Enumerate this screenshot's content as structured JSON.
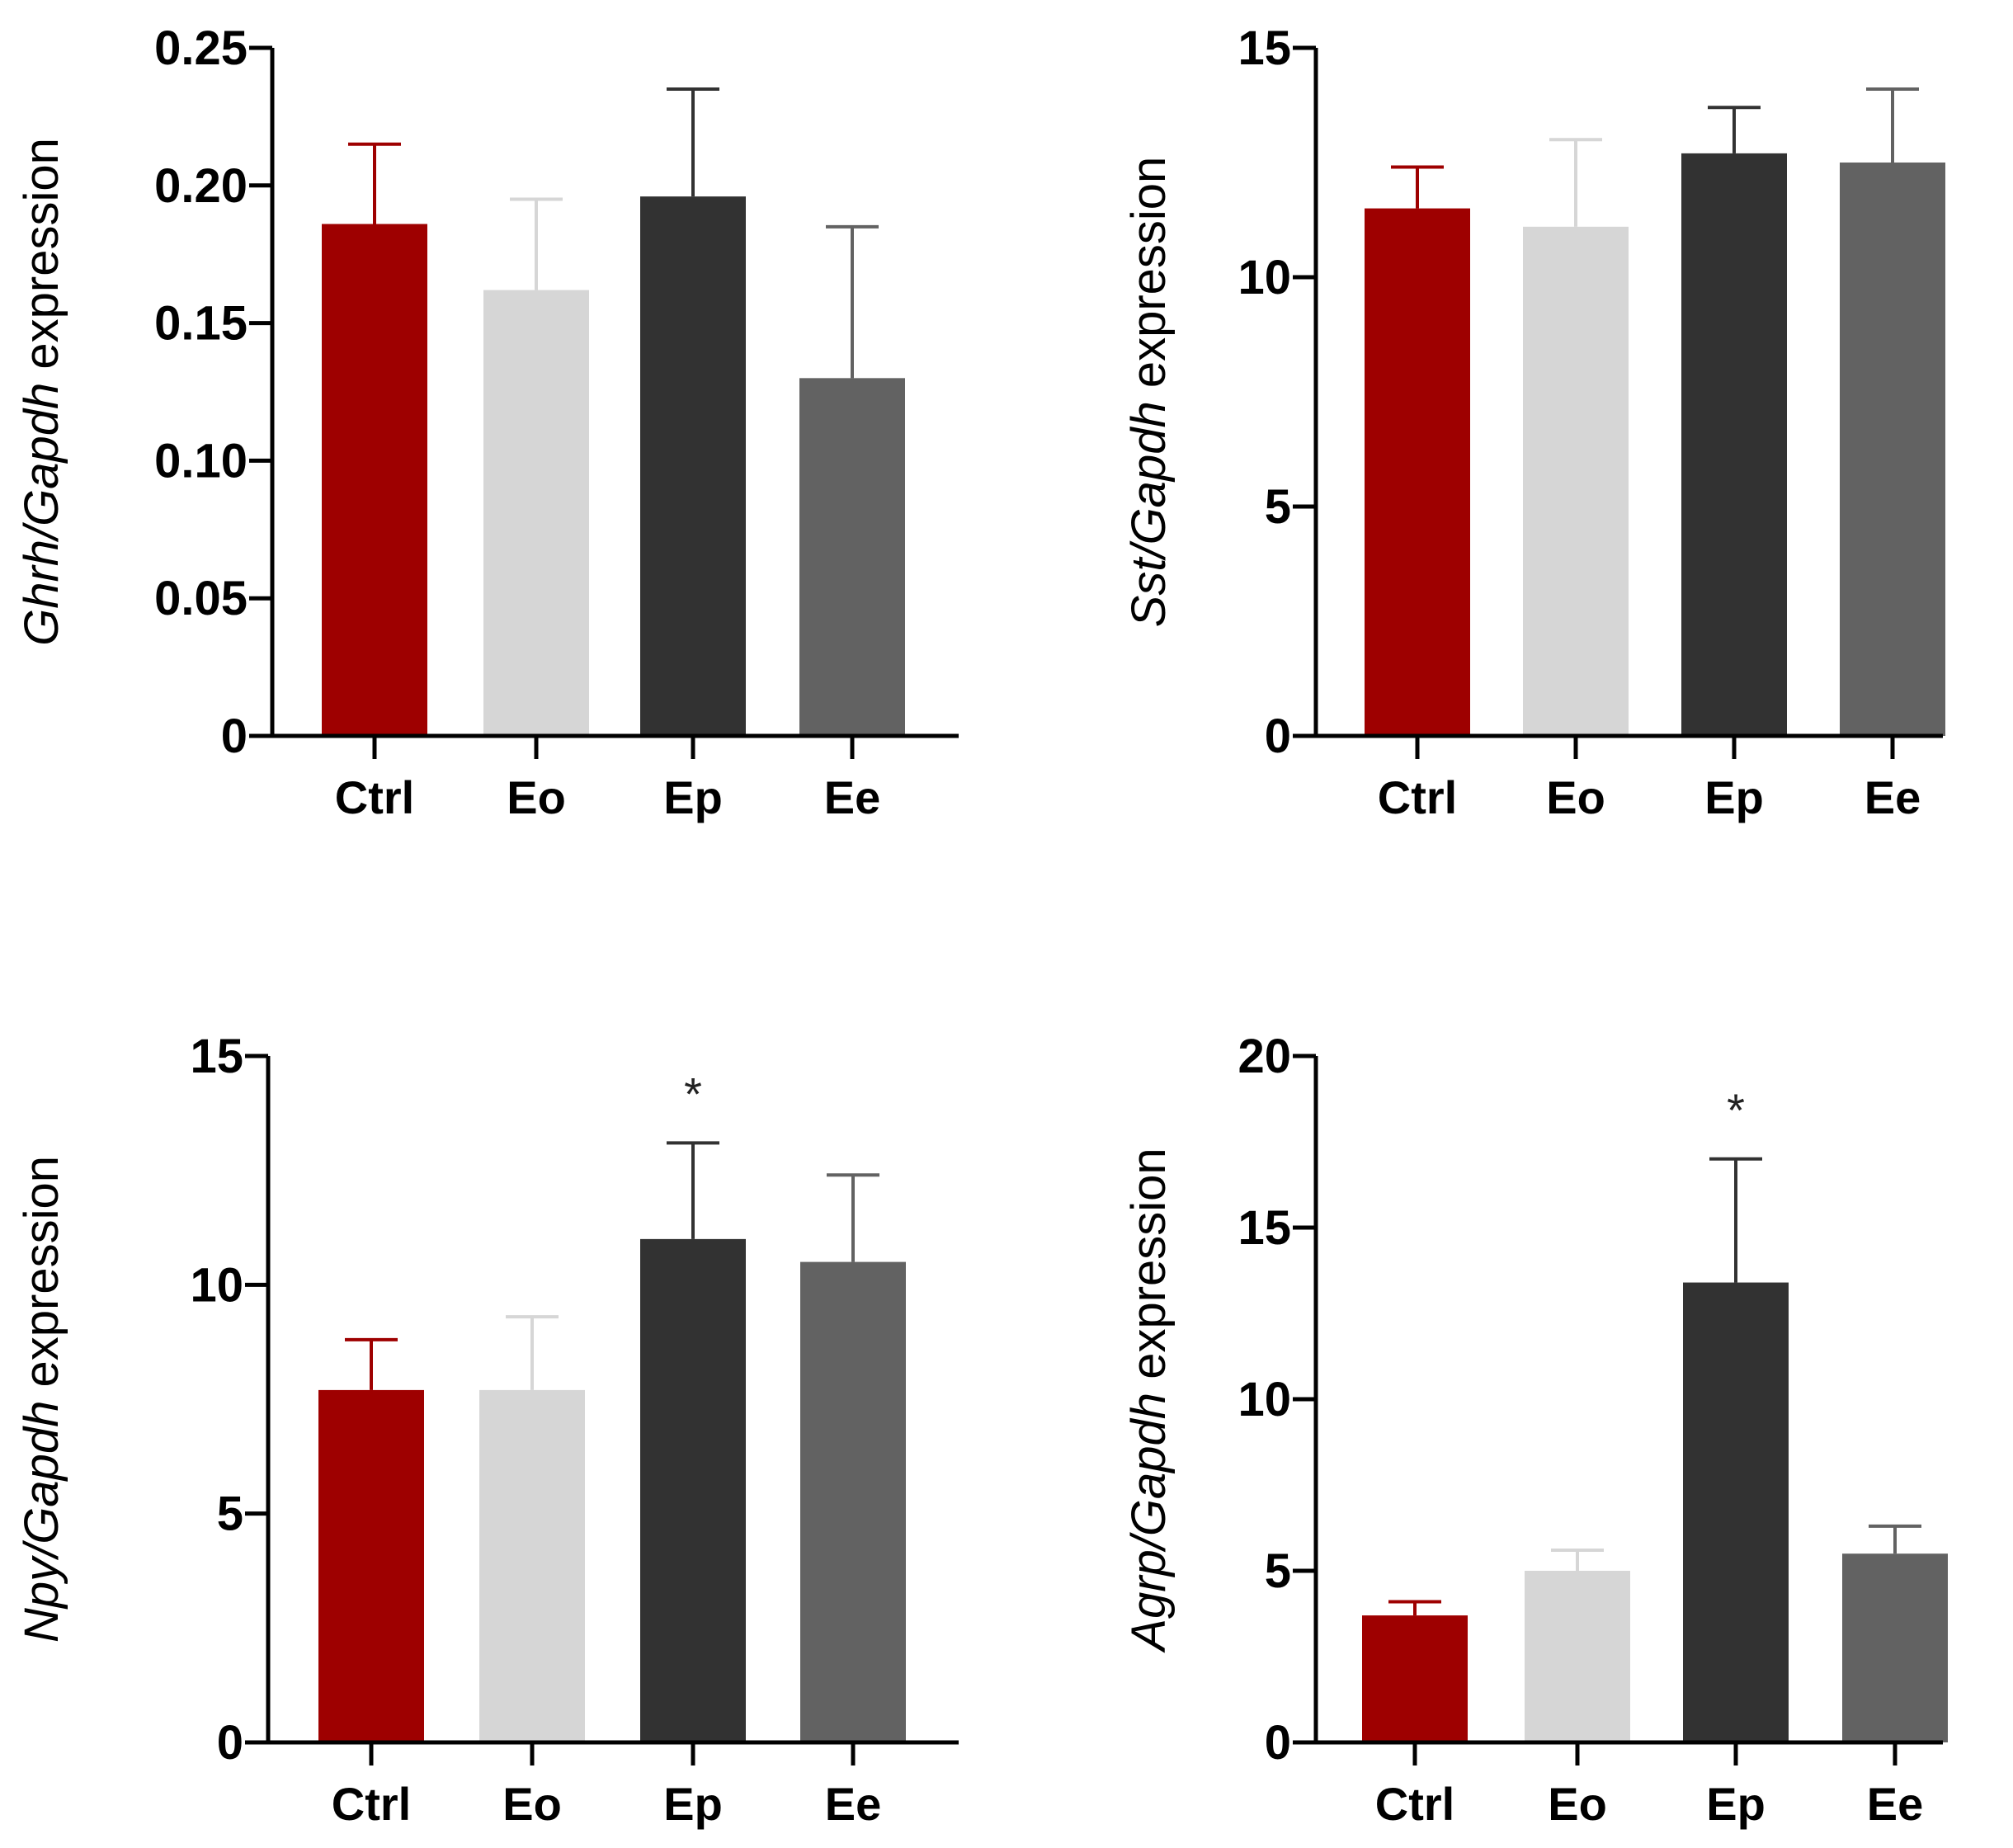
{
  "colors": {
    "Ctrl": "#9e0000",
    "Eo": "#d6d6d6",
    "Ep": "#323232",
    "Ee": "#626262",
    "axis": "#000000"
  },
  "chart_data": [
    {
      "type": "bar",
      "gene": "Ghrh",
      "ylabel": {
        "italic": "Ghrh/Gapdh",
        "plain": " expression"
      },
      "categories": [
        "Ctrl",
        "Eo",
        "Ep",
        "Ee"
      ],
      "values": [
        0.186,
        0.162,
        0.196,
        0.13
      ],
      "errors": [
        0.029,
        0.033,
        0.039,
        0.055
      ],
      "significance": [
        "",
        "",
        "",
        ""
      ],
      "ylim": [
        0,
        0.25
      ],
      "yticks": [
        0,
        0.05,
        0.1,
        0.15,
        0.2,
        0.25
      ],
      "ytick_labels": [
        "0",
        "0.05",
        "0.10",
        "0.15",
        "0.20",
        "0.25"
      ]
    },
    {
      "type": "bar",
      "gene": "Sst",
      "ylabel": {
        "italic": "Sst/Gapdh",
        "plain": " expression"
      },
      "categories": [
        "Ctrl",
        "Eo",
        "Ep",
        "Ee"
      ],
      "values": [
        11.5,
        11.1,
        12.7,
        12.5
      ],
      "errors": [
        0.9,
        1.9,
        1.0,
        1.6
      ],
      "significance": [
        "",
        "",
        "",
        ""
      ],
      "ylim": [
        0,
        15
      ],
      "yticks": [
        0,
        5,
        10,
        15
      ],
      "ytick_labels": [
        "0",
        "5",
        "10",
        "15"
      ]
    },
    {
      "type": "bar",
      "gene": "Npy",
      "ylabel": {
        "italic": "Npy/Gapdh",
        "plain": " expression"
      },
      "categories": [
        "Ctrl",
        "Eo",
        "Ep",
        "Ee"
      ],
      "values": [
        7.7,
        7.7,
        11.0,
        10.5
      ],
      "errors": [
        1.1,
        1.6,
        2.1,
        1.9
      ],
      "significance": [
        "",
        "",
        "*",
        ""
      ],
      "ylim": [
        0,
        15
      ],
      "yticks": [
        0,
        5,
        10,
        15
      ],
      "ytick_labels": [
        "0",
        "5",
        "10",
        "15"
      ]
    },
    {
      "type": "bar",
      "gene": "Agrp",
      "ylabel": {
        "italic": "Agrp/Gapdh",
        "plain": " expression"
      },
      "categories": [
        "Ctrl",
        "Eo",
        "Ep",
        "Ee"
      ],
      "values": [
        3.7,
        5.0,
        13.4,
        5.5
      ],
      "errors": [
        0.4,
        0.6,
        3.6,
        0.8
      ],
      "significance": [
        "",
        "",
        "*",
        ""
      ],
      "ylim": [
        0,
        20
      ],
      "yticks": [
        0,
        5,
        10,
        15,
        20
      ],
      "ytick_labels": [
        "0",
        "5",
        "10",
        "15",
        "20"
      ]
    }
  ]
}
